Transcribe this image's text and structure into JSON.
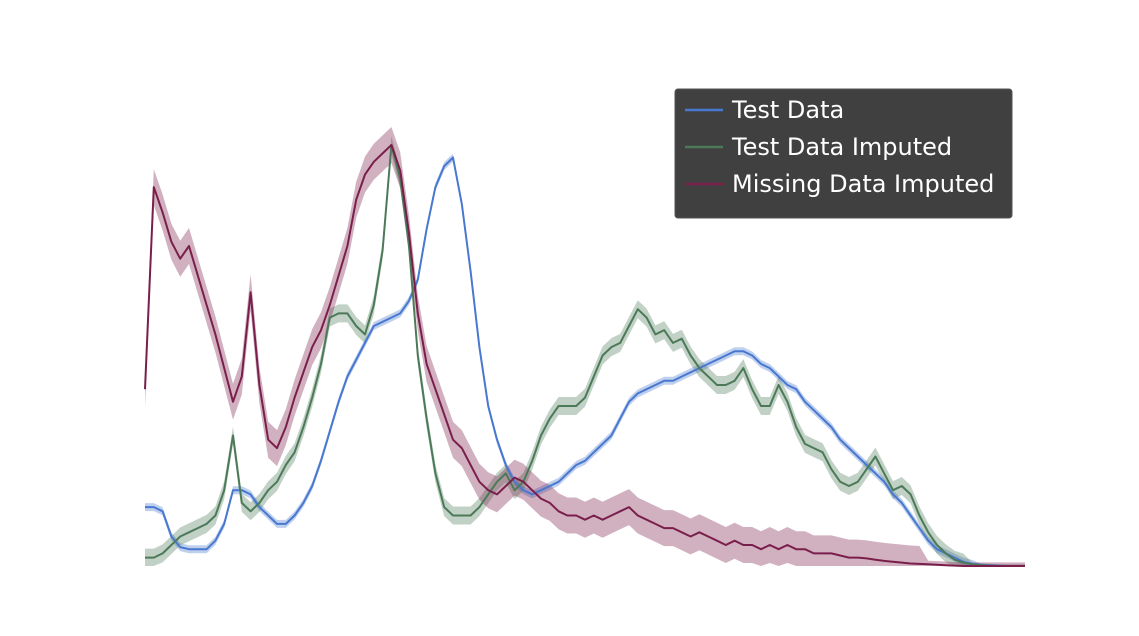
{
  "chart_data": {
    "type": "line",
    "title": "",
    "xlabel": "",
    "ylabel": "",
    "grid": false,
    "axes_visible": false,
    "legend_position": "top-right",
    "legend_background": "#404040",
    "x": [
      0.0,
      0.25,
      0.5,
      0.75,
      1.0,
      1.25,
      1.5,
      1.75,
      2.0,
      2.25,
      2.5,
      2.75,
      3.0,
      3.25,
      3.5,
      3.75,
      4.0,
      4.25,
      4.5,
      4.75,
      5.0,
      5.25,
      5.5,
      5.75,
      6.0,
      6.25,
      6.5,
      6.75,
      7.0,
      7.25,
      7.5,
      7.75,
      8.0,
      8.25,
      8.5,
      8.75,
      9.0,
      9.25,
      9.5,
      9.75,
      10.0,
      10.25,
      10.5,
      10.75,
      11.0,
      11.25,
      11.5,
      11.75,
      12.0,
      12.25,
      12.5,
      12.75,
      13.0,
      13.25,
      13.5,
      13.75,
      14.0,
      14.25,
      14.5,
      14.75,
      15.0,
      15.25,
      15.5,
      15.75,
      16.0,
      16.25,
      16.5,
      16.75,
      17.0,
      17.25,
      17.5,
      17.75,
      18.0,
      18.25,
      18.5,
      18.75,
      19.0,
      19.25,
      19.5,
      19.75,
      20.0,
      20.25,
      20.5,
      20.75,
      21.0,
      21.25,
      21.5,
      21.75,
      22.0,
      22.25,
      22.5,
      22.75,
      23.0,
      23.25,
      23.5,
      23.75,
      24.0,
      24.25,
      24.5,
      24.75,
      25.0
    ],
    "xlim": [
      0,
      25
    ],
    "ylim": [
      0,
      1.0
    ],
    "series": [
      {
        "name": "Test Data",
        "color": "#4878cf",
        "values": [
          0.14,
          0.14,
          0.13,
          0.07,
          0.045,
          0.04,
          0.04,
          0.04,
          0.06,
          0.1,
          0.18,
          0.18,
          0.17,
          0.14,
          0.12,
          0.1,
          0.1,
          0.12,
          0.15,
          0.19,
          0.25,
          0.32,
          0.39,
          0.45,
          0.49,
          0.53,
          0.57,
          0.58,
          0.59,
          0.6,
          0.63,
          0.68,
          0.8,
          0.9,
          0.95,
          0.97,
          0.86,
          0.7,
          0.52,
          0.38,
          0.3,
          0.24,
          0.2,
          0.18,
          0.17,
          0.18,
          0.19,
          0.2,
          0.22,
          0.24,
          0.25,
          0.27,
          0.29,
          0.31,
          0.35,
          0.39,
          0.41,
          0.42,
          0.43,
          0.44,
          0.44,
          0.45,
          0.46,
          0.47,
          0.48,
          0.49,
          0.5,
          0.51,
          0.51,
          0.5,
          0.48,
          0.47,
          0.45,
          0.43,
          0.42,
          0.39,
          0.37,
          0.35,
          0.33,
          0.3,
          0.28,
          0.26,
          0.24,
          0.22,
          0.2,
          0.17,
          0.15,
          0.12,
          0.09,
          0.06,
          0.04,
          0.03,
          0.02,
          0.01,
          0.005,
          0.003,
          0.002,
          0.001,
          0.0,
          0.0,
          0.0
        ]
      },
      {
        "name": "Test Data Imputed",
        "color": "#4c7a59",
        "values": [
          0.02,
          0.02,
          0.03,
          0.05,
          0.07,
          0.08,
          0.09,
          0.1,
          0.12,
          0.18,
          0.31,
          0.15,
          0.13,
          0.15,
          0.18,
          0.2,
          0.24,
          0.27,
          0.33,
          0.4,
          0.48,
          0.59,
          0.6,
          0.6,
          0.57,
          0.55,
          0.62,
          0.75,
          1.0,
          0.92,
          0.76,
          0.5,
          0.35,
          0.22,
          0.14,
          0.12,
          0.12,
          0.12,
          0.14,
          0.17,
          0.2,
          0.22,
          0.18,
          0.2,
          0.25,
          0.31,
          0.35,
          0.38,
          0.38,
          0.38,
          0.4,
          0.45,
          0.5,
          0.52,
          0.53,
          0.57,
          0.61,
          0.59,
          0.55,
          0.56,
          0.53,
          0.54,
          0.5,
          0.47,
          0.45,
          0.43,
          0.43,
          0.44,
          0.47,
          0.42,
          0.38,
          0.38,
          0.43,
          0.39,
          0.33,
          0.29,
          0.28,
          0.27,
          0.23,
          0.2,
          0.19,
          0.2,
          0.23,
          0.26,
          0.22,
          0.18,
          0.19,
          0.17,
          0.12,
          0.08,
          0.05,
          0.03,
          0.015,
          0.008,
          0.004,
          0.002,
          0.001,
          0.0,
          0.0,
          0.0,
          0.0
        ]
      },
      {
        "name": "Missing Data Imputed",
        "color": "#7a1f4b",
        "values": [
          0.42,
          0.9,
          0.84,
          0.77,
          0.73,
          0.76,
          0.69,
          0.62,
          0.55,
          0.47,
          0.39,
          0.45,
          0.65,
          0.43,
          0.3,
          0.28,
          0.33,
          0.4,
          0.46,
          0.52,
          0.56,
          0.62,
          0.69,
          0.76,
          0.87,
          0.93,
          0.96,
          0.98,
          1.0,
          0.94,
          0.79,
          0.6,
          0.48,
          0.42,
          0.36,
          0.3,
          0.28,
          0.24,
          0.2,
          0.18,
          0.17,
          0.19,
          0.21,
          0.2,
          0.18,
          0.16,
          0.15,
          0.13,
          0.12,
          0.12,
          0.11,
          0.12,
          0.11,
          0.12,
          0.13,
          0.14,
          0.12,
          0.11,
          0.1,
          0.09,
          0.09,
          0.08,
          0.07,
          0.08,
          0.07,
          0.06,
          0.05,
          0.06,
          0.05,
          0.05,
          0.04,
          0.05,
          0.04,
          0.05,
          0.04,
          0.04,
          0.03,
          0.03,
          0.03,
          0.025,
          0.02,
          0.02,
          0.018,
          0.015,
          0.012,
          0.01,
          0.008,
          0.006,
          0.005,
          0.004,
          0.003,
          0.002,
          0.001,
          0.0,
          0.0,
          0.0,
          0.0,
          0.0,
          0.0,
          0.0,
          0.0
        ]
      }
    ]
  }
}
